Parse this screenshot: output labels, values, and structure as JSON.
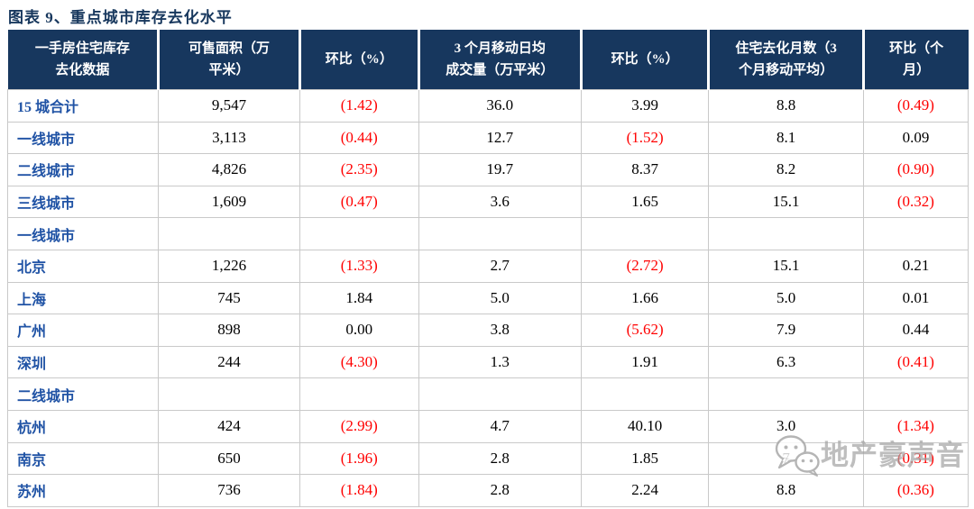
{
  "title": "图表 9、重点城市库存去化水平",
  "watermark": {
    "icon": "wechat-bubbles-icon",
    "text": "地产豪声音"
  },
  "colors": {
    "header_bg": "#17375E",
    "header_text": "#FFFFFF",
    "title_blue": "#17375D",
    "row_label_blue": "#2053A5",
    "negative_red": "#FF0000",
    "grid_gray": "#C9C9C9",
    "watermark_gray": "#A3A3A3"
  },
  "chart_data": {
    "type": "table",
    "title": "图表 9、重点城市库存去化水平",
    "columns": [
      {
        "lines": [
          "一手房住宅库存",
          "去化数据"
        ]
      },
      {
        "lines": [
          "可售面积（万",
          "平米）"
        ]
      },
      {
        "lines": [
          "环比（%）"
        ]
      },
      {
        "lines": [
          "3 个月移动日均",
          "成交量（万平米）"
        ]
      },
      {
        "lines": [
          "环比（%）"
        ]
      },
      {
        "lines": [
          "住宅去化月数（3",
          "个月移动平均）"
        ]
      },
      {
        "lines": [
          "环比（个",
          "月）"
        ]
      }
    ],
    "rows": [
      {
        "type": "data",
        "label": "15 城合计",
        "values": [
          "9,547",
          "(1.42)",
          "36.0",
          "3.99",
          "8.8",
          "(0.49)"
        ]
      },
      {
        "type": "data",
        "label": "一线城市",
        "values": [
          "3,113",
          "(0.44)",
          "12.7",
          "(1.52)",
          "8.1",
          "0.09"
        ]
      },
      {
        "type": "data",
        "label": "二线城市",
        "values": [
          "4,826",
          "(2.35)",
          "19.7",
          "8.37",
          "8.2",
          "(0.90)"
        ]
      },
      {
        "type": "data",
        "label": "三线城市",
        "values": [
          "1,609",
          "(0.47)",
          "3.6",
          "1.65",
          "15.1",
          "(0.32)"
        ]
      },
      {
        "type": "section",
        "label": "一线城市",
        "values": [
          "",
          "",
          "",
          "",
          "",
          ""
        ]
      },
      {
        "type": "data",
        "label": "北京",
        "values": [
          "1,226",
          "(1.33)",
          "2.7",
          "(2.72)",
          "15.1",
          "0.21"
        ]
      },
      {
        "type": "data",
        "label": "上海",
        "values": [
          "745",
          "1.84",
          "5.0",
          "1.66",
          "5.0",
          "0.01"
        ]
      },
      {
        "type": "data",
        "label": "广州",
        "values": [
          "898",
          "0.00",
          "3.8",
          "(5.62)",
          "7.9",
          "0.44"
        ]
      },
      {
        "type": "data",
        "label": "深圳",
        "values": [
          "244",
          "(4.30)",
          "1.3",
          "1.91",
          "6.3",
          "(0.41)"
        ]
      },
      {
        "type": "section",
        "label": "二线城市",
        "values": [
          "",
          "",
          "",
          "",
          "",
          ""
        ]
      },
      {
        "type": "data",
        "label": "杭州",
        "values": [
          "424",
          "(2.99)",
          "4.7",
          "40.10",
          "3.0",
          "(1.34)"
        ]
      },
      {
        "type": "data",
        "label": "南京",
        "values": [
          "650",
          "(1.96)",
          "2.8",
          "1.85",
          "7",
          "(0.31)"
        ]
      },
      {
        "type": "data",
        "label": "苏州",
        "values": [
          "736",
          "(1.84)",
          "2.8",
          "2.24",
          "8.8",
          "(0.36)"
        ]
      }
    ]
  }
}
